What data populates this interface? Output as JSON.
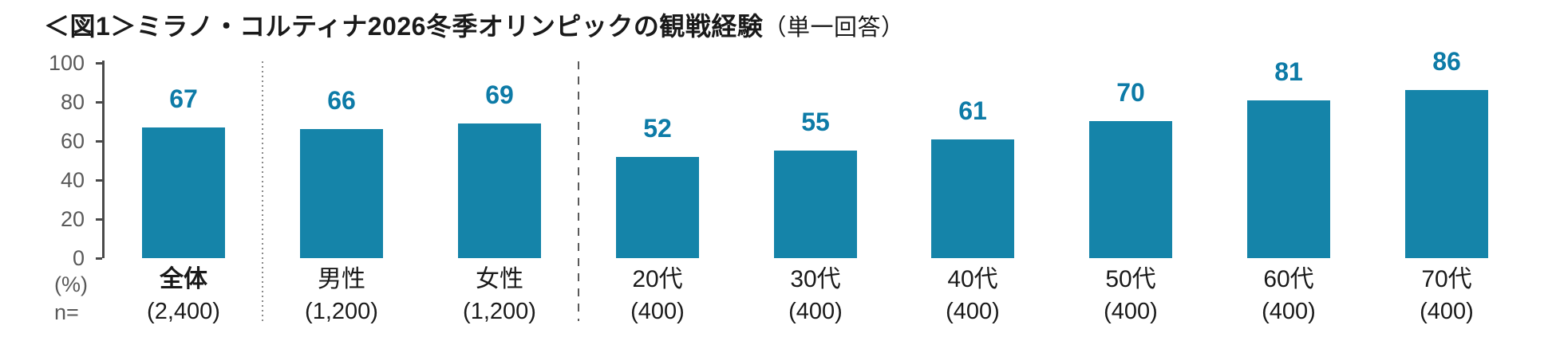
{
  "title": {
    "main": "＜図1＞ミラノ・コルティナ2026冬季オリンピックの観戦経験",
    "suffix": "（単一回答）"
  },
  "axis": {
    "percent_label": "(%)",
    "n_prefix": "n=",
    "ticks": [
      0,
      20,
      40,
      60,
      80,
      100
    ]
  },
  "colors": {
    "bar": "#1584A9",
    "value_label": "#0D7BA7",
    "axis_line": "#4A4A4A",
    "tick_text": "#595959",
    "category_text": "#1A1A1A",
    "separator_dotted": "#8A8A8A",
    "separator_dashed": "#5A5A5A"
  },
  "chart_data": {
    "type": "bar",
    "title": "＜図1＞ミラノ・コルティナ2026冬季オリンピックの観戦経験（単一回答）",
    "categories": [
      "全体",
      "男性",
      "女性",
      "20代",
      "30代",
      "40代",
      "50代",
      "60代",
      "70代"
    ],
    "values": [
      67,
      66,
      69,
      52,
      55,
      61,
      70,
      81,
      86
    ],
    "n_labels": [
      "(2,400)",
      "(1,200)",
      "(1,200)",
      "(400)",
      "(400)",
      "(400)",
      "(400)",
      "(400)",
      "(400)"
    ],
    "ylabel": "(%)",
    "ylim": [
      0,
      100
    ],
    "yticks": [
      0,
      20,
      40,
      60,
      80,
      100
    ],
    "grid": false,
    "legend": null,
    "bold_category_index": 0,
    "separators": [
      {
        "after_index": 0,
        "style": "dotted"
      },
      {
        "after_index": 2,
        "style": "dashed"
      }
    ]
  }
}
